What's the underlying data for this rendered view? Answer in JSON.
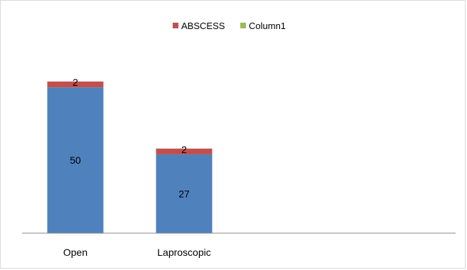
{
  "chart_data": {
    "type": "bar",
    "stacked": true,
    "categories": [
      "Open",
      "Laproscopic"
    ],
    "series": [
      {
        "values": [
          50,
          27
        ],
        "color": "#4f81bd",
        "show_in_legend": false,
        "data_labels": [
          "50",
          "27"
        ]
      },
      {
        "name": "ABSCESS",
        "values": [
          2,
          2
        ],
        "color": "#c0504d",
        "show_in_legend": true,
        "data_labels": [
          "2",
          "2"
        ]
      },
      {
        "name": "Column1",
        "values": [
          0,
          0
        ],
        "color": "#9bbb59",
        "show_in_legend": true,
        "data_labels": []
      }
    ],
    "ylim": [
      0,
      70
    ],
    "grid": false,
    "legend_position": "top"
  }
}
